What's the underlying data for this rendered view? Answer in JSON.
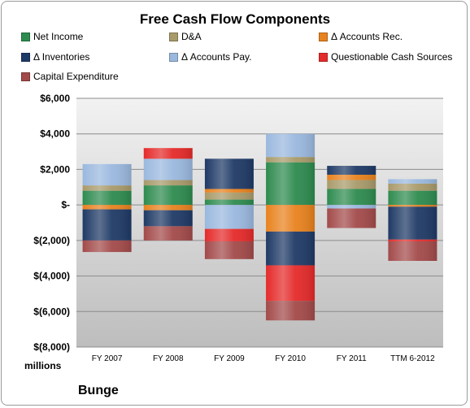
{
  "chart_data": {
    "type": "bar",
    "stacked": true,
    "title": "Free Cash Flow Components",
    "categories": [
      "FY 2007",
      "FY 2008",
      "FY 2009",
      "FY 2010",
      "FY 2011",
      "TTM 6-2012"
    ],
    "ylabel": "millions",
    "ylim": [
      -8000,
      6000
    ],
    "yticks": [
      6000,
      4000,
      2000,
      0,
      -2000,
      -4000,
      -6000,
      -8000
    ],
    "ytick_labels": [
      "$6,000",
      "$4,000",
      "$2,000",
      "$-",
      "$(2,000)",
      "$(4,000)",
      "$(6,000)",
      "$(8,000)"
    ],
    "grid": true,
    "legend": "top",
    "series": [
      {
        "name": "Net Income",
        "color": "#2e8b4f",
        "values": [
          800,
          1100,
          300,
          2400,
          900,
          800
        ]
      },
      {
        "name": "D&A",
        "color": "#a89a6a",
        "values": [
          300,
          300,
          400,
          300,
          500,
          400
        ]
      },
      {
        "name": "Δ Accounts Rec.",
        "color": "#e8821e",
        "values": [
          -250,
          -300,
          200,
          -1500,
          300,
          -100
        ]
      },
      {
        "name": "Δ Inventories",
        "color": "#1f3a66",
        "values": [
          -1750,
          -900,
          1700,
          -1900,
          500,
          -1850
        ]
      },
      {
        "name": "Δ Accounts Pay.",
        "color": "#9ab8de",
        "values": [
          1200,
          1200,
          -1350,
          1300,
          -200,
          250
        ]
      },
      {
        "name": "Questionable Cash Sources",
        "color": "#e52a2a",
        "values": [
          0,
          600,
          -700,
          -2000,
          0,
          -100
        ]
      },
      {
        "name": "Capital Expenditure",
        "color": "#a34a4a",
        "values": [
          -650,
          -800,
          -1000,
          -1100,
          -1100,
          -1100
        ]
      }
    ]
  },
  "footer": {
    "units": "millions",
    "company": "Bunge"
  }
}
